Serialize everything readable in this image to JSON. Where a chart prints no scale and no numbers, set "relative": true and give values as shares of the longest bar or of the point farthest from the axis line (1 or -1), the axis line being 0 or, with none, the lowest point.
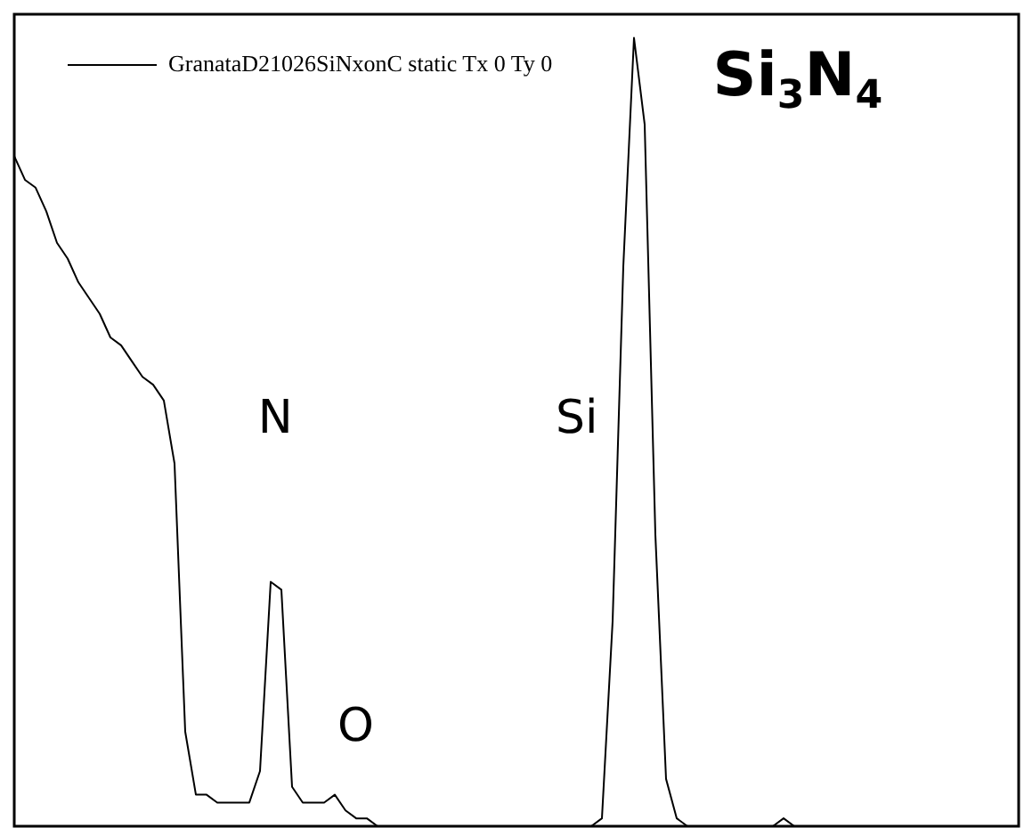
{
  "chart_data": {
    "type": "line",
    "relative": true,
    "legend": "top left",
    "marker": "none",
    "line_style": "solid",
    "grid": false,
    "categories": [
      null,
      null,
      null,
      null,
      null,
      null,
      null,
      null,
      null,
      null,
      null,
      null,
      null,
      null,
      null,
      null,
      null,
      null,
      null,
      null,
      null,
      null,
      null,
      null,
      null,
      null,
      null,
      null,
      null,
      null,
      null,
      null,
      null,
      null,
      null,
      null,
      null,
      null,
      null,
      null,
      null,
      null,
      null,
      null,
      null,
      null,
      null,
      null,
      null,
      null,
      null,
      null,
      null,
      null,
      null,
      null,
      null,
      null,
      null,
      null,
      null,
      null,
      null,
      null,
      null,
      null,
      null,
      null,
      null,
      null,
      null,
      null,
      null,
      null,
      null,
      null,
      null,
      null,
      null,
      null,
      null,
      null,
      null,
      null,
      null,
      null,
      null,
      null,
      null,
      null,
      null,
      null,
      null,
      null,
      null
    ],
    "series": [
      {
        "name": "GranataD21026SiNxonC static Tx 0 Ty 0",
        "color": "#000000",
        "values": [
          0.85,
          0.82,
          0.81,
          0.78,
          0.74,
          0.72,
          0.69,
          0.67,
          0.65,
          0.62,
          0.61,
          0.59,
          0.57,
          0.56,
          0.54,
          0.46,
          0.12,
          0.04,
          0.04,
          0.03,
          0.03,
          0.03,
          0.03,
          0.07,
          0.31,
          0.3,
          0.05,
          0.03,
          0.03,
          0.03,
          0.04,
          0.02,
          0.01,
          0.01,
          0,
          0,
          0,
          0,
          0,
          0,
          0,
          0,
          0,
          0,
          0,
          0,
          0,
          0,
          0,
          0,
          0,
          0,
          0,
          0,
          0,
          0.01,
          0.26,
          0.71,
          1,
          0.89,
          0.37,
          0.06,
          0.01,
          0,
          0,
          0,
          0,
          0,
          0,
          0,
          0,
          0,
          0.01,
          0,
          0,
          0,
          0,
          0,
          0,
          0,
          0,
          0,
          0,
          0,
          0,
          0,
          0,
          0,
          0,
          0,
          0,
          0,
          0,
          0,
          0
        ]
      }
    ],
    "annotations": [
      "N",
      "Si",
      "O",
      "Si$_{3}$N$_{4}$"
    ]
  }
}
